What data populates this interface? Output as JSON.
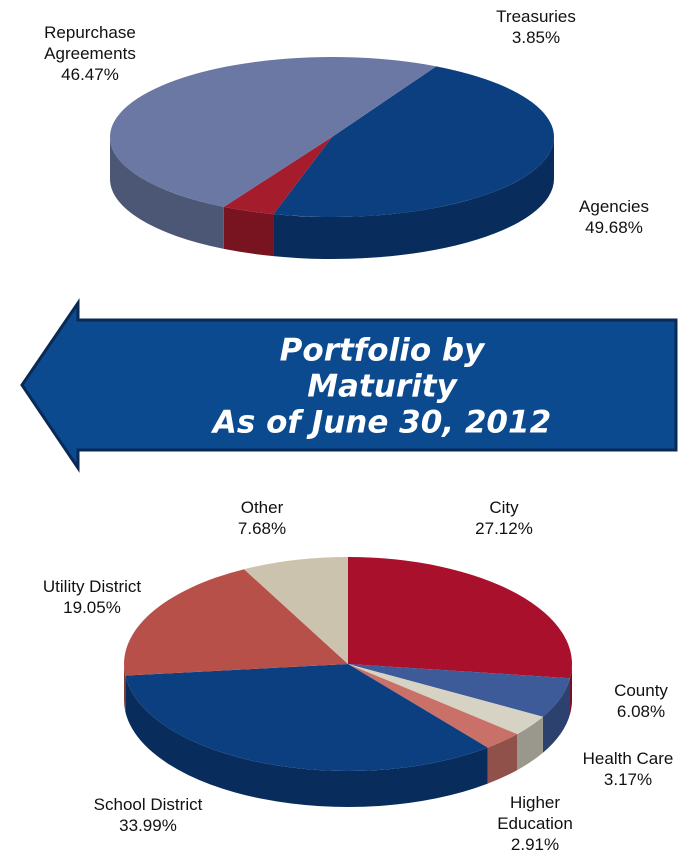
{
  "chart_data": [
    {
      "type": "pie",
      "categories": [
        "Repurchase Agreements",
        "Treasuries",
        "Agencies"
      ],
      "values": [
        46.47,
        3.85,
        49.68
      ],
      "value_labels": [
        "46.47%",
        "3.85%",
        "49.68%"
      ],
      "colors": [
        "#0b3f80",
        "#a51c2c",
        "#6a78a3"
      ]
    },
    {
      "type": "pie",
      "categories": [
        "City",
        "County",
        "Health Care",
        "Higher Education",
        "School District",
        "Utility District",
        "Other"
      ],
      "values": [
        27.12,
        6.08,
        3.17,
        2.91,
        33.99,
        19.05,
        7.68
      ],
      "value_labels": [
        "27.12%",
        "6.08%",
        "3.17%",
        "2.91%",
        "33.99%",
        "19.05%",
        "7.68%"
      ],
      "colors": [
        "#a8102c",
        "#3d5a99",
        "#d6d2c4",
        "#c97068",
        "#0b3f80",
        "#b8504a",
        "#cbc3ae"
      ]
    }
  ],
  "banner": {
    "lines": [
      "Portfolio by",
      "Maturity",
      "As of June 30, 2012"
    ]
  }
}
